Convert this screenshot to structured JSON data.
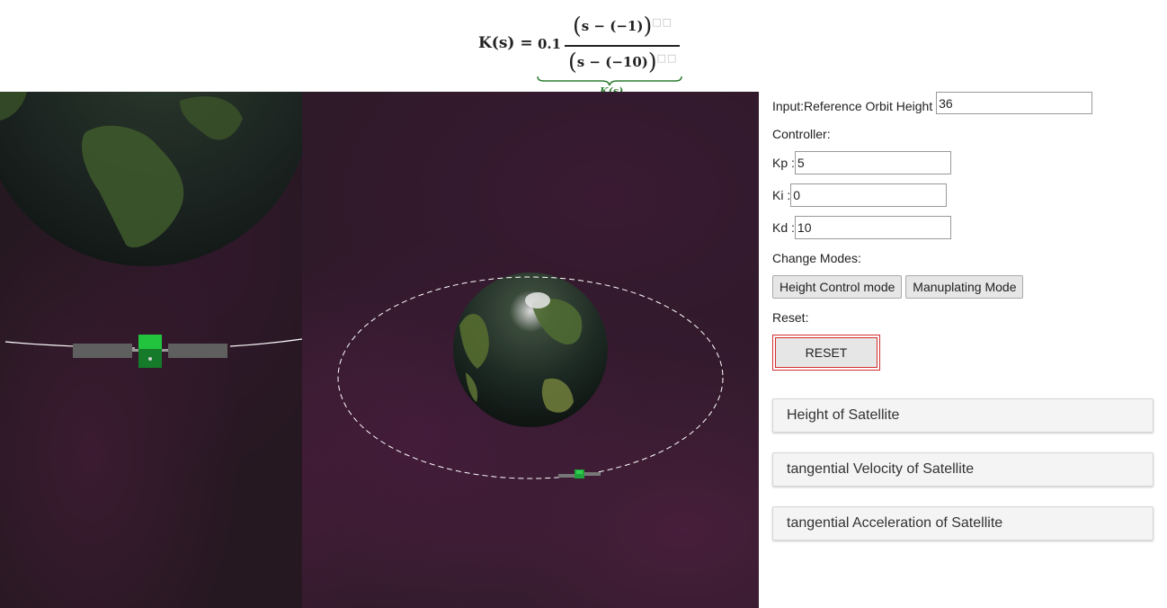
{
  "formula": {
    "lhs": "K(s) =",
    "gain": "0.1",
    "numerator": "s − (−1)",
    "denominator": "s − (−10)",
    "brace_label": "K(s)"
  },
  "panel": {
    "reference_label": "Input:Reference Orbit Height",
    "reference_value": "36",
    "controller_label": "Controller:",
    "kp_label": "Kp :",
    "kp_value": "5",
    "ki_label": "Ki  :",
    "ki_value": "0",
    "kd_label": "Kd :",
    "kd_value": "10",
    "modes_label": "Change Modes:",
    "height_mode_button": "Height Control mode",
    "manip_mode_button": "Manuplating Mode",
    "reset_label": "Reset:",
    "reset_button": "RESET",
    "accordions": [
      "Height of Satellite",
      "tangential Velocity of Satellite",
      "tangential Acceleration of Satellite"
    ]
  },
  "colors": {
    "background_space": "#2a1a26",
    "earth_ocean": "#1b2330",
    "earth_land": "#4a6a32",
    "satellite": "#1fa33a",
    "orbit_line": "#ffffff",
    "reset_border": "#d32f2f",
    "brace_color": "#2e7d32"
  }
}
